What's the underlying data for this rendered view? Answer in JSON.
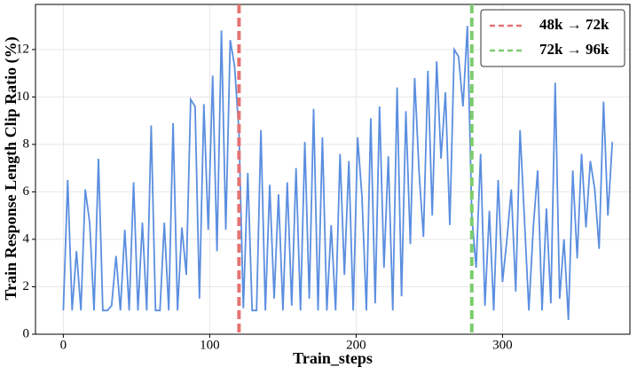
{
  "chart_data": {
    "type": "line",
    "xlabel": "Train_steps",
    "ylabel": "Train Response Length Clip Ratio (%)",
    "x": [
      0,
      3,
      6,
      9,
      12,
      15,
      18,
      21,
      24,
      27,
      30,
      33,
      36,
      39,
      42,
      45,
      48,
      51,
      54,
      57,
      60,
      63,
      66,
      69,
      72,
      75,
      78,
      81,
      84,
      87,
      90,
      93,
      96,
      99,
      102,
      105,
      108,
      111,
      114,
      117,
      120,
      123,
      126,
      129,
      132,
      135,
      138,
      141,
      144,
      147,
      150,
      153,
      156,
      159,
      162,
      165,
      168,
      171,
      174,
      177,
      180,
      183,
      186,
      189,
      192,
      195,
      198,
      201,
      204,
      207,
      210,
      213,
      216,
      219,
      222,
      225,
      228,
      231,
      234,
      237,
      240,
      243,
      246,
      249,
      252,
      255,
      258,
      261,
      264,
      267,
      270,
      273,
      276,
      279,
      282,
      285,
      288,
      291,
      294,
      297,
      300,
      303,
      306,
      309,
      312,
      315,
      318,
      321,
      324,
      327,
      330,
      333,
      336,
      339,
      342,
      345,
      348,
      351,
      354,
      357,
      360,
      363,
      366,
      369,
      372,
      375
    ],
    "series": [
      {
        "color": "#5b8ee0",
        "values": [
          1,
          6.5,
          1,
          3.5,
          1,
          6.1,
          4.7,
          1,
          7.4,
          1,
          1,
          1.2,
          3.3,
          1,
          4.4,
          1,
          6.4,
          1,
          4.7,
          1,
          8.8,
          1,
          1,
          4.7,
          1,
          8.9,
          1,
          4.5,
          2.5,
          9.9,
          9.6,
          1.5,
          9.7,
          4.4,
          10.9,
          3.5,
          12.8,
          4.4,
          12.4,
          11.3,
          8.5,
          1.1,
          6.8,
          1,
          1,
          8.6,
          1,
          6.3,
          1.5,
          5.9,
          1,
          6.4,
          1.2,
          7.0,
          1,
          8.1,
          1.5,
          9.5,
          1,
          8.3,
          1,
          4.6,
          1,
          7.6,
          2.5,
          7.3,
          1,
          8.3,
          5.8,
          1,
          9.1,
          1.3,
          9.6,
          2.8,
          7.5,
          1,
          10.4,
          1.6,
          9.4,
          3.8,
          10.8,
          6.8,
          4.1,
          11.1,
          5.0,
          11.5,
          7.4,
          10.2,
          4.6,
          12.0,
          11.7,
          9.6,
          13.0,
          5.0,
          2.8,
          7.6,
          1.2,
          5.2,
          1,
          6.5,
          2.2,
          4.0,
          6.1,
          1.8,
          8.6,
          4.8,
          1,
          4.5,
          6.9,
          1,
          5.3,
          1.3,
          10.6,
          1.5,
          4.0,
          0.6,
          6.9,
          3.2,
          7.6,
          4.5,
          7.3,
          6.1,
          3.6,
          9.8,
          5.0,
          8.1
        ]
      }
    ],
    "vlines": [
      {
        "x": 120,
        "color": "#e57373",
        "label": "48k → 72k"
      },
      {
        "x": 279,
        "color": "#7ccc6e",
        "label": "72k → 96k"
      }
    ],
    "xlim": [
      -19,
      387
    ],
    "ylim": [
      0,
      13.9
    ],
    "xticks": [
      0,
      100,
      200,
      300
    ],
    "yticks": [
      0,
      2,
      4,
      6,
      8,
      10,
      12
    ],
    "grid": true,
    "legend": "upper right"
  }
}
